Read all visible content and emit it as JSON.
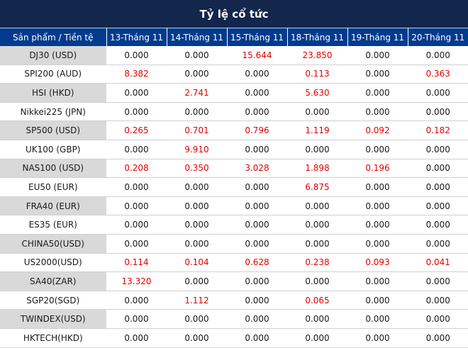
{
  "title": "Tỷ lệ cổ tức",
  "headers": [
    "Sản phẩm / Tiền tệ",
    "13-Tháng 11",
    "14-Tháng 11",
    "15-Tháng 11",
    "18-Tháng 11",
    "19-Tháng 11",
    "20-Tháng 11"
  ],
  "colors": {
    "title_bg": "#13264c",
    "header_bg": "#003b8e",
    "shaded_cell": "#d9d9d9",
    "positive_value": "#e60000",
    "zero_value": "#1a1a1a"
  },
  "rows": [
    {
      "product": "DJ30 (USD)",
      "values": [
        "0.000",
        "0.000",
        "15.644",
        "23.850",
        "0.000",
        "0.000"
      ]
    },
    {
      "product": "SPI200 (AUD)",
      "values": [
        "8.382",
        "0.000",
        "0.000",
        "0.113",
        "0.000",
        "0.363"
      ]
    },
    {
      "product": "HSI (HKD)",
      "values": [
        "0.000",
        "2.741",
        "0.000",
        "5.630",
        "0.000",
        "0.000"
      ]
    },
    {
      "product": "Nikkei225 (JPN)",
      "values": [
        "0.000",
        "0.000",
        "0.000",
        "0.000",
        "0.000",
        "0.000"
      ]
    },
    {
      "product": "SP500 (USD)",
      "values": [
        "0.265",
        "0.701",
        "0.796",
        "1.119",
        "0.092",
        "0.182"
      ]
    },
    {
      "product": "UK100 (GBP)",
      "values": [
        "0.000",
        "9.910",
        "0.000",
        "0.000",
        "0.000",
        "0.000"
      ]
    },
    {
      "product": "NAS100 (USD)",
      "values": [
        "0.208",
        "0.350",
        "3.028",
        "1.898",
        "0.196",
        "0.000"
      ]
    },
    {
      "product": "EU50 (EUR)",
      "values": [
        "0.000",
        "0.000",
        "0.000",
        "6.875",
        "0.000",
        "0.000"
      ]
    },
    {
      "product": "FRA40 (EUR)",
      "values": [
        "0.000",
        "0.000",
        "0.000",
        "0.000",
        "0.000",
        "0.000"
      ]
    },
    {
      "product": "ES35 (EUR)",
      "values": [
        "0.000",
        "0.000",
        "0.000",
        "0.000",
        "0.000",
        "0.000"
      ]
    },
    {
      "product": "CHINA50(USD)",
      "values": [
        "0.000",
        "0.000",
        "0.000",
        "0.000",
        "0.000",
        "0.000"
      ]
    },
    {
      "product": "US2000(USD)",
      "values": [
        "0.114",
        "0.104",
        "0.628",
        "0.238",
        "0.093",
        "0.041"
      ]
    },
    {
      "product": "SA40(ZAR)",
      "values": [
        "13.320",
        "0.000",
        "0.000",
        "0.000",
        "0.000",
        "0.000"
      ]
    },
    {
      "product": "SGP20(SGD)",
      "values": [
        "0.000",
        "1.112",
        "0.000",
        "0.065",
        "0.000",
        "0.000"
      ]
    },
    {
      "product": "TWINDEX(USD)",
      "values": [
        "0.000",
        "0.000",
        "0.000",
        "0.000",
        "0.000",
        "0.000"
      ]
    },
    {
      "product": "HKTECH(HKD)",
      "values": [
        "0.000",
        "0.000",
        "0.000",
        "0.000",
        "0.000",
        "0.000"
      ]
    }
  ]
}
